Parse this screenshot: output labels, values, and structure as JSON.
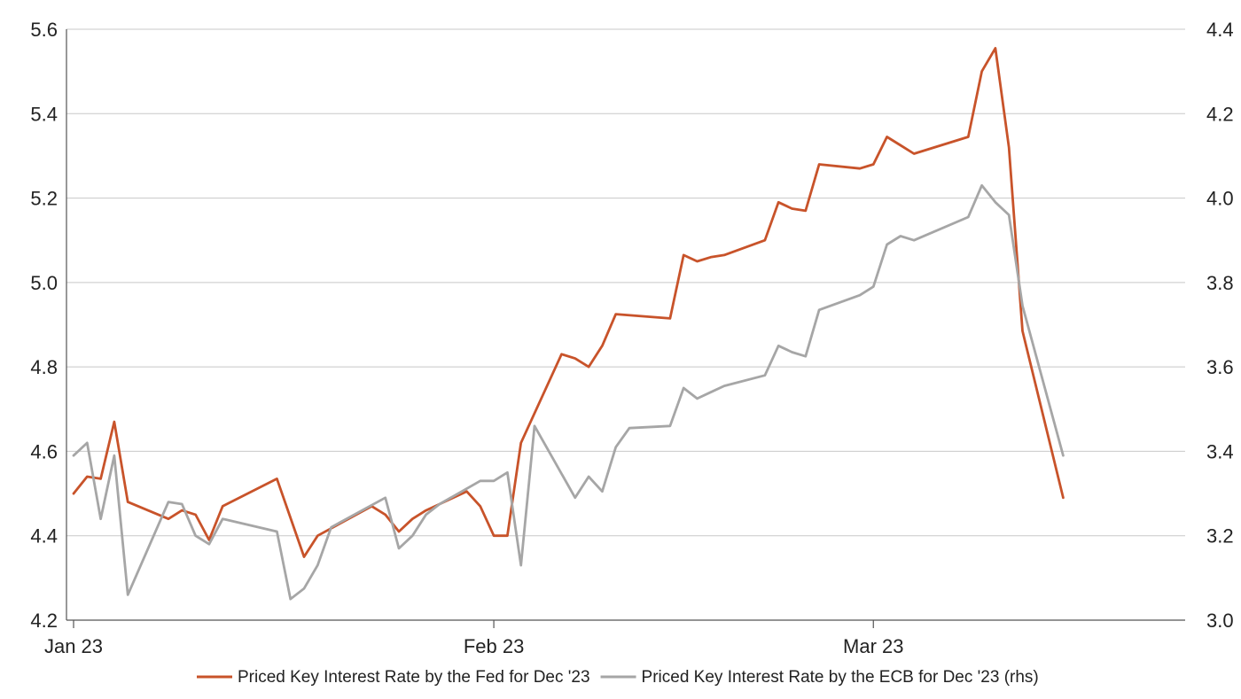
{
  "chart_data": {
    "type": "line",
    "x_axis_labels": [
      "Jan 23",
      "Feb 23",
      "Mar 23"
    ],
    "x_axis_label_dates": [
      "2023-01-01",
      "2023-02-01",
      "2023-03-01"
    ],
    "x_range": [
      "2023-01-01",
      "2023-03-24"
    ],
    "y_left": {
      "range": [
        4.2,
        5.6
      ],
      "ticks": [
        "4.2",
        "4.4",
        "4.6",
        "4.8",
        "5.0",
        "5.2",
        "5.4",
        "5.6"
      ]
    },
    "y_right": {
      "range": [
        3.0,
        4.4
      ],
      "ticks": [
        "3.0",
        "3.2",
        "3.4",
        "3.6",
        "3.8",
        "4.0",
        "4.2",
        "4.4"
      ]
    },
    "grid": "horizontal",
    "legend_position": "bottom",
    "series": [
      {
        "name": "Priced Key Interest Rate by the Fed for Dec '23",
        "axis": "left",
        "color": "#C8532A",
        "points": [
          [
            "2023-01-01",
            4.5
          ],
          [
            "2023-01-02",
            4.54
          ],
          [
            "2023-01-03",
            4.535
          ],
          [
            "2023-01-04",
            4.67
          ],
          [
            "2023-01-05",
            4.48
          ],
          [
            "2023-01-08",
            4.44
          ],
          [
            "2023-01-09",
            4.46
          ],
          [
            "2023-01-10",
            4.45
          ],
          [
            "2023-01-11",
            4.39
          ],
          [
            "2023-01-12",
            4.47
          ],
          [
            "2023-01-16",
            4.535
          ],
          [
            "2023-01-18",
            4.35
          ],
          [
            "2023-01-19",
            4.4
          ],
          [
            "2023-01-23",
            4.47
          ],
          [
            "2023-01-24",
            4.45
          ],
          [
            "2023-01-25",
            4.41
          ],
          [
            "2023-01-26",
            4.44
          ],
          [
            "2023-01-27",
            4.46
          ],
          [
            "2023-01-30",
            4.505
          ],
          [
            "2023-01-31",
            4.47
          ],
          [
            "2023-02-01",
            4.4
          ],
          [
            "2023-02-02",
            4.4
          ],
          [
            "2023-02-03",
            4.62
          ],
          [
            "2023-02-06",
            4.83
          ],
          [
            "2023-02-07",
            4.82
          ],
          [
            "2023-02-08",
            4.8
          ],
          [
            "2023-02-09",
            4.85
          ],
          [
            "2023-02-10",
            4.925
          ],
          [
            "2023-02-14",
            4.915
          ],
          [
            "2023-02-15",
            5.065
          ],
          [
            "2023-02-16",
            5.05
          ],
          [
            "2023-02-17",
            5.06
          ],
          [
            "2023-02-18",
            5.065
          ],
          [
            "2023-02-21",
            5.1
          ],
          [
            "2023-02-22",
            5.19
          ],
          [
            "2023-02-23",
            5.175
          ],
          [
            "2023-02-24",
            5.17
          ],
          [
            "2023-02-25",
            5.28
          ],
          [
            "2023-02-28",
            5.27
          ],
          [
            "2023-03-01",
            5.28
          ],
          [
            "2023-03-02",
            5.345
          ],
          [
            "2023-03-03",
            5.325
          ],
          [
            "2023-03-04",
            5.305
          ],
          [
            "2023-03-08",
            5.345
          ],
          [
            "2023-03-09",
            5.5
          ],
          [
            "2023-03-10",
            5.555
          ],
          [
            "2023-03-11",
            5.32
          ],
          [
            "2023-03-12",
            4.885
          ],
          [
            "2023-03-15",
            4.49
          ]
        ]
      },
      {
        "name": "Priced Key Interest Rate by the ECB for Dec '23 (rhs)",
        "axis": "right",
        "color": "#A6A6A6",
        "points": [
          [
            "2023-01-01",
            3.39
          ],
          [
            "2023-01-02",
            3.42
          ],
          [
            "2023-01-03",
            3.24
          ],
          [
            "2023-01-04",
            3.39
          ],
          [
            "2023-01-05",
            3.06
          ],
          [
            "2023-01-08",
            3.28
          ],
          [
            "2023-01-09",
            3.275
          ],
          [
            "2023-01-10",
            3.2
          ],
          [
            "2023-01-11",
            3.18
          ],
          [
            "2023-01-12",
            3.24
          ],
          [
            "2023-01-16",
            3.21
          ],
          [
            "2023-01-17",
            3.05
          ],
          [
            "2023-01-18",
            3.075
          ],
          [
            "2023-01-19",
            3.13
          ],
          [
            "2023-01-20",
            3.22
          ],
          [
            "2023-01-24",
            3.29
          ],
          [
            "2023-01-25",
            3.17
          ],
          [
            "2023-01-26",
            3.2
          ],
          [
            "2023-01-27",
            3.25
          ],
          [
            "2023-01-28",
            3.275
          ],
          [
            "2023-01-31",
            3.33
          ],
          [
            "2023-02-01",
            3.33
          ],
          [
            "2023-02-02",
            3.35
          ],
          [
            "2023-02-03",
            3.13
          ],
          [
            "2023-02-04",
            3.46
          ],
          [
            "2023-02-07",
            3.29
          ],
          [
            "2023-02-08",
            3.34
          ],
          [
            "2023-02-09",
            3.305
          ],
          [
            "2023-02-10",
            3.41
          ],
          [
            "2023-02-11",
            3.455
          ],
          [
            "2023-02-14",
            3.46
          ],
          [
            "2023-02-15",
            3.55
          ],
          [
            "2023-02-16",
            3.525
          ],
          [
            "2023-02-17",
            3.54
          ],
          [
            "2023-02-18",
            3.555
          ],
          [
            "2023-02-21",
            3.58
          ],
          [
            "2023-02-22",
            3.65
          ],
          [
            "2023-02-23",
            3.635
          ],
          [
            "2023-02-24",
            3.625
          ],
          [
            "2023-02-25",
            3.735
          ],
          [
            "2023-02-28",
            3.77
          ],
          [
            "2023-03-01",
            3.79
          ],
          [
            "2023-03-02",
            3.89
          ],
          [
            "2023-03-03",
            3.91
          ],
          [
            "2023-03-04",
            3.9
          ],
          [
            "2023-03-08",
            3.955
          ],
          [
            "2023-03-09",
            4.03
          ],
          [
            "2023-03-10",
            3.99
          ],
          [
            "2023-03-11",
            3.96
          ],
          [
            "2023-03-12",
            3.745
          ],
          [
            "2023-03-15",
            3.39
          ]
        ]
      }
    ]
  }
}
